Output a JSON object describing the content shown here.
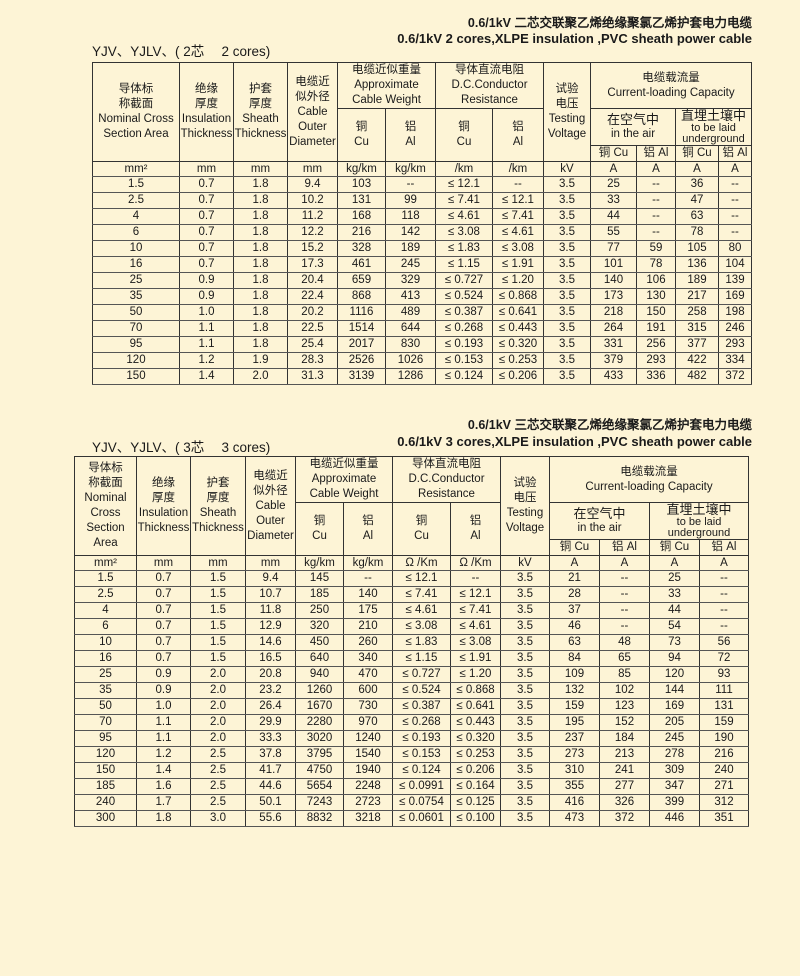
{
  "colors": {
    "background": "#fdf4d6",
    "border": "#333333"
  },
  "tables": [
    {
      "title_cn": "0.6/1kV 二芯交联聚乙烯绝缘聚氯乙烯护套电力电缆",
      "title_en": "0.6/1kV 2 cores,XLPE insulation ,PVC sheath power cable",
      "model": "YJV、YJLV、( 2芯　 2 cores)",
      "headers": {
        "area": [
          "导体标",
          "称截面",
          "Nominal Cross",
          "Section Area"
        ],
        "insulation": [
          "绝缘",
          "厚度",
          "Insulation",
          "Thickness"
        ],
        "sheath": [
          "护套",
          "厚度",
          "Sheath",
          "Thickness"
        ],
        "diameter": [
          "电缆近",
          "似外径",
          "Cable",
          "Outer",
          "Diameter"
        ],
        "weight": [
          "电缆近似重量",
          "Approximate",
          "Cable Weight"
        ],
        "resistance": [
          "导体直流电阻",
          "D.C.Conductor",
          "Resistance"
        ],
        "voltage": [
          "试验",
          "电压",
          "Testing",
          "Voltage"
        ],
        "capacity": [
          "电缆载流量",
          "Current-loading Capacity"
        ],
        "air": [
          "在空气中",
          "in the air"
        ],
        "underground": [
          "直埋土壤中",
          "to be laid",
          "underground"
        ],
        "cu": [
          "铜",
          "Cu"
        ],
        "al": [
          "铝",
          "Al"
        ],
        "cap_cols": [
          "铜 Cu",
          "铝 Al",
          "铜 Cu",
          "铝 Al"
        ]
      },
      "units": [
        "mm²",
        "mm",
        "mm",
        "mm",
        "kg/km",
        "kg/km",
        "/km",
        "/km",
        "kV",
        "A",
        "A",
        "A",
        "A"
      ],
      "rows": [
        [
          "1.5",
          "0.7",
          "1.8",
          "9.4",
          "103",
          "--",
          "≤ 12.1",
          "--",
          "3.5",
          "25",
          "--",
          "36",
          "--"
        ],
        [
          "2.5",
          "0.7",
          "1.8",
          "10.2",
          "131",
          "99",
          "≤ 7.41",
          "≤ 12.1",
          "3.5",
          "33",
          "--",
          "47",
          "--"
        ],
        [
          "4",
          "0.7",
          "1.8",
          "11.2",
          "168",
          "118",
          "≤ 4.61",
          "≤ 7.41",
          "3.5",
          "44",
          "--",
          "63",
          "--"
        ],
        [
          "6",
          "0.7",
          "1.8",
          "12.2",
          "216",
          "142",
          "≤ 3.08",
          "≤ 4.61",
          "3.5",
          "55",
          "--",
          "78",
          "--"
        ],
        [
          "10",
          "0.7",
          "1.8",
          "15.2",
          "328",
          "189",
          "≤ 1.83",
          "≤ 3.08",
          "3.5",
          "77",
          "59",
          "105",
          "80"
        ],
        [
          "16",
          "0.7",
          "1.8",
          "17.3",
          "461",
          "245",
          "≤ 1.15",
          "≤ 1.91",
          "3.5",
          "101",
          "78",
          "136",
          "104"
        ],
        [
          "25",
          "0.9",
          "1.8",
          "20.4",
          "659",
          "329",
          "≤ 0.727",
          "≤ 1.20",
          "3.5",
          "140",
          "106",
          "189",
          "139"
        ],
        [
          "35",
          "0.9",
          "1.8",
          "22.4",
          "868",
          "413",
          "≤ 0.524",
          "≤ 0.868",
          "3.5",
          "173",
          "130",
          "217",
          "169"
        ],
        [
          "50",
          "1.0",
          "1.8",
          "20.2",
          "1116",
          "489",
          "≤ 0.387",
          "≤ 0.641",
          "3.5",
          "218",
          "150",
          "258",
          "198"
        ],
        [
          "70",
          "1.1",
          "1.8",
          "22.5",
          "1514",
          "644",
          "≤ 0.268",
          "≤ 0.443",
          "3.5",
          "264",
          "191",
          "315",
          "246"
        ],
        [
          "95",
          "1.1",
          "1.8",
          "25.4",
          "2017",
          "830",
          "≤ 0.193",
          "≤ 0.320",
          "3.5",
          "331",
          "256",
          "377",
          "293"
        ],
        [
          "120",
          "1.2",
          "1.9",
          "28.3",
          "2526",
          "1026",
          "≤ 0.153",
          "≤ 0.253",
          "3.5",
          "379",
          "293",
          "422",
          "334"
        ],
        [
          "150",
          "1.4",
          "2.0",
          "31.3",
          "3139",
          "1286",
          "≤ 0.124",
          "≤ 0.206",
          "3.5",
          "433",
          "336",
          "482",
          "372"
        ]
      ]
    },
    {
      "title_cn": "0.6/1kV 三芯交联聚乙烯绝缘聚氯乙烯护套电力电缆",
      "title_en": "0.6/1kV 3 cores,XLPE insulation ,PVC sheath power cable",
      "model": "YJV、YJLV、( 3芯　 3 cores)",
      "headers": {
        "area": [
          "导体标",
          "称截面",
          "Nominal",
          "Cross",
          "Section Area"
        ],
        "insulation": [
          "绝缘",
          "厚度",
          "Insulation",
          "Thickness"
        ],
        "sheath": [
          "护套",
          "厚度",
          "Sheath",
          "Thickness"
        ],
        "diameter": [
          "电缆近",
          "似外径",
          "Cable",
          "Outer",
          "Diameter"
        ],
        "weight": [
          "电缆近似重量",
          "Approximate",
          "Cable Weight"
        ],
        "resistance": [
          "导体直流电阻",
          "D.C.Conductor",
          "Resistance"
        ],
        "voltage": [
          "试验",
          "电压",
          "Testing",
          "Voltage"
        ],
        "capacity": [
          "电缆载流量",
          "Current-loading Capacity"
        ],
        "air": [
          "在空气中",
          "in the air"
        ],
        "underground": [
          "直埋土壤中",
          "to be laid",
          "underground"
        ],
        "cu": [
          "铜",
          "Cu"
        ],
        "al": [
          "铝",
          "Al"
        ],
        "cap_cols": [
          "铜 Cu",
          "铝 Al",
          "铜 Cu",
          "铝 Al"
        ]
      },
      "units": [
        "mm²",
        "mm",
        "mm",
        "mm",
        "kg/km",
        "kg/km",
        "Ω /Km",
        "Ω /Km",
        "kV",
        "A",
        "A",
        "A",
        "A"
      ],
      "rows": [
        [
          "1.5",
          "0.7",
          "1.5",
          "9.4",
          "145",
          "--",
          "≤ 12.1",
          "--",
          "3.5",
          "21",
          "--",
          "25",
          "--"
        ],
        [
          "2.5",
          "0.7",
          "1.5",
          "10.7",
          "185",
          "140",
          "≤ 7.41",
          "≤ 12.1",
          "3.5",
          "28",
          "--",
          "33",
          "--"
        ],
        [
          "4",
          "0.7",
          "1.5",
          "11.8",
          "250",
          "175",
          "≤ 4.61",
          "≤ 7.41",
          "3.5",
          "37",
          "--",
          "44",
          "--"
        ],
        [
          "6",
          "0.7",
          "1.5",
          "12.9",
          "320",
          "210",
          "≤ 3.08",
          "≤ 4.61",
          "3.5",
          "46",
          "--",
          "54",
          "--"
        ],
        [
          "10",
          "0.7",
          "1.5",
          "14.6",
          "450",
          "260",
          "≤ 1.83",
          "≤ 3.08",
          "3.5",
          "63",
          "48",
          "73",
          "56"
        ],
        [
          "16",
          "0.7",
          "1.5",
          "16.5",
          "640",
          "340",
          "≤ 1.15",
          "≤ 1.91",
          "3.5",
          "84",
          "65",
          "94",
          "72"
        ],
        [
          "25",
          "0.9",
          "2.0",
          "20.8",
          "940",
          "470",
          "≤ 0.727",
          "≤ 1.20",
          "3.5",
          "109",
          "85",
          "120",
          "93"
        ],
        [
          "35",
          "0.9",
          "2.0",
          "23.2",
          "1260",
          "600",
          "≤ 0.524",
          "≤ 0.868",
          "3.5",
          "132",
          "102",
          "144",
          "111"
        ],
        [
          "50",
          "1.0",
          "2.0",
          "26.4",
          "1670",
          "730",
          "≤ 0.387",
          "≤ 0.641",
          "3.5",
          "159",
          "123",
          "169",
          "131"
        ],
        [
          "70",
          "1.1",
          "2.0",
          "29.9",
          "2280",
          "970",
          "≤ 0.268",
          "≤ 0.443",
          "3.5",
          "195",
          "152",
          "205",
          "159"
        ],
        [
          "95",
          "1.1",
          "2.0",
          "33.3",
          "3020",
          "1240",
          "≤ 0.193",
          "≤ 0.320",
          "3.5",
          "237",
          "184",
          "245",
          "190"
        ],
        [
          "120",
          "1.2",
          "2.5",
          "37.8",
          "3795",
          "1540",
          "≤ 0.153",
          "≤ 0.253",
          "3.5",
          "273",
          "213",
          "278",
          "216"
        ],
        [
          "150",
          "1.4",
          "2.5",
          "41.7",
          "4750",
          "1940",
          "≤ 0.124",
          "≤ 0.206",
          "3.5",
          "310",
          "241",
          "309",
          "240"
        ],
        [
          "185",
          "1.6",
          "2.5",
          "44.6",
          "5654",
          "2248",
          "≤ 0.0991",
          "≤ 0.164",
          "3.5",
          "355",
          "277",
          "347",
          "271"
        ],
        [
          "240",
          "1.7",
          "2.5",
          "50.1",
          "7243",
          "2723",
          "≤ 0.0754",
          "≤ 0.125",
          "3.5",
          "416",
          "326",
          "399",
          "312"
        ],
        [
          "300",
          "1.8",
          "3.0",
          "55.6",
          "8832",
          "3218",
          "≤ 0.0601",
          "≤ 0.100",
          "3.5",
          "473",
          "372",
          "446",
          "351"
        ]
      ]
    }
  ]
}
